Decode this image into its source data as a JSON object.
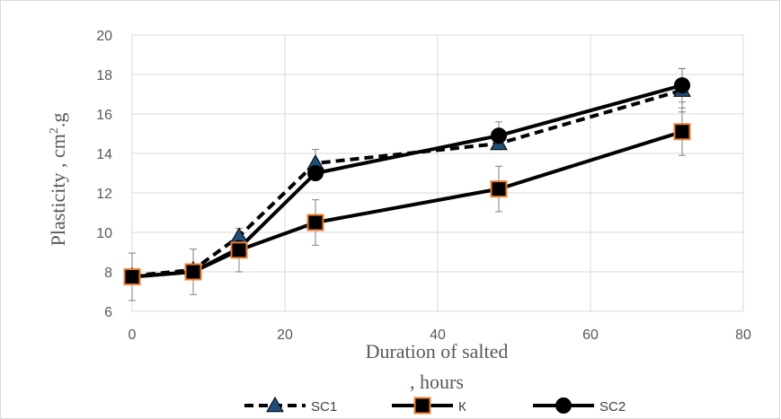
{
  "chart_data": {
    "type": "line",
    "xlabel_line1": "Duration of salted",
    "xlabel_line2": ", hours",
    "ylabel": "Plasticity , cm",
    "ylabel_sup": "2",
    "ylabel_suffix": ".g",
    "xlim": [
      0,
      80
    ],
    "ylim": [
      6,
      20
    ],
    "xticks": [
      0,
      20,
      40,
      60,
      80
    ],
    "yticks": [
      6,
      8,
      10,
      12,
      14,
      16,
      18,
      20
    ],
    "grid": true,
    "legend_position": "bottom",
    "series": [
      {
        "name": "SC1",
        "marker": "triangle",
        "line_style": "dashed",
        "marker_fill": "#1f4e79",
        "line_color": "#000000",
        "x": [
          0,
          8,
          14,
          24,
          48,
          72
        ],
        "y": [
          7.8,
          8.1,
          9.8,
          13.5,
          14.5,
          17.2
        ],
        "error": [
          0,
          0,
          0,
          0.7,
          0,
          1.1
        ]
      },
      {
        "name": "К",
        "marker": "square",
        "line_style": "solid",
        "marker_fill": "#000000",
        "marker_stroke": "#ed7d31",
        "line_color": "#000000",
        "x": [
          0,
          8,
          14,
          24,
          48,
          72
        ],
        "y": [
          7.75,
          8.0,
          9.1,
          10.5,
          12.2,
          15.1
        ],
        "error": [
          1.2,
          1.15,
          1.1,
          1.15,
          1.15,
          1.2
        ]
      },
      {
        "name": "SC2",
        "marker": "circle",
        "line_style": "solid",
        "marker_fill": "#000000",
        "line_color": "#000000",
        "x": [
          0,
          8,
          14,
          24,
          48,
          72
        ],
        "y": [
          7.75,
          8.0,
          9.2,
          13.0,
          14.9,
          17.45
        ],
        "error": [
          0,
          0,
          0,
          0,
          0.7,
          0.85
        ]
      }
    ]
  }
}
